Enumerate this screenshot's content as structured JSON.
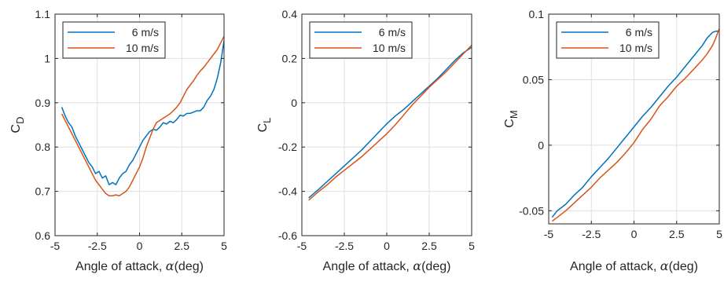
{
  "figure": {
    "series_colors": [
      "#0072BD",
      "#D95319"
    ]
  },
  "chart_data": [
    {
      "type": "line",
      "xlabel_prefix": "Angle of attack, ",
      "xlabel_symbol": "α",
      "xlabel_suffix": "(deg)",
      "ylabel_main": "C",
      "ylabel_sub": "D",
      "xlim": [
        -5,
        5
      ],
      "ylim": [
        0.6,
        1.1
      ],
      "xticks": [
        -5,
        -2.5,
        0,
        2.5,
        5
      ],
      "xtick_labels": [
        "-5",
        "-2.5",
        "0",
        "2.5",
        "5"
      ],
      "yticks": [
        0.6,
        0.7,
        0.8,
        0.9,
        1.0,
        1.1
      ],
      "ytick_labels": [
        "0.6",
        "0.7",
        "0.8",
        "0.9",
        "1",
        "1.1"
      ],
      "grid": true,
      "legend_position": "top-left",
      "series": [
        {
          "name": "6 m/s",
          "color": "#0072BD",
          "x": [
            -4.6,
            -4.4,
            -4.2,
            -4.0,
            -3.8,
            -3.6,
            -3.4,
            -3.2,
            -3.0,
            -2.8,
            -2.6,
            -2.4,
            -2.2,
            -2.0,
            -1.8,
            -1.6,
            -1.4,
            -1.2,
            -1.0,
            -0.8,
            -0.6,
            -0.4,
            -0.2,
            0.0,
            0.2,
            0.4,
            0.6,
            0.8,
            1.0,
            1.2,
            1.4,
            1.6,
            1.8,
            2.0,
            2.2,
            2.4,
            2.6,
            2.8,
            3.0,
            3.2,
            3.4,
            3.6,
            3.8,
            4.0,
            4.2,
            4.4,
            4.6,
            4.8,
            5.0
          ],
          "y": [
            0.89,
            0.87,
            0.855,
            0.845,
            0.825,
            0.81,
            0.795,
            0.78,
            0.765,
            0.755,
            0.74,
            0.745,
            0.73,
            0.735,
            0.715,
            0.72,
            0.715,
            0.73,
            0.74,
            0.745,
            0.76,
            0.77,
            0.785,
            0.8,
            0.815,
            0.825,
            0.835,
            0.84,
            0.838,
            0.845,
            0.855,
            0.852,
            0.858,
            0.855,
            0.862,
            0.872,
            0.87,
            0.876,
            0.876,
            0.879,
            0.882,
            0.882,
            0.89,
            0.905,
            0.915,
            0.93,
            0.955,
            0.99,
            1.04
          ]
        },
        {
          "name": "10 m/s",
          "color": "#D95319",
          "x": [
            -4.6,
            -4.4,
            -4.2,
            -4.0,
            -3.8,
            -3.6,
            -3.4,
            -3.2,
            -3.0,
            -2.8,
            -2.6,
            -2.4,
            -2.2,
            -2.0,
            -1.8,
            -1.6,
            -1.4,
            -1.2,
            -1.0,
            -0.8,
            -0.6,
            -0.4,
            -0.2,
            0.0,
            0.2,
            0.4,
            0.6,
            0.8,
            1.0,
            1.2,
            1.4,
            1.6,
            1.8,
            2.0,
            2.2,
            2.4,
            2.6,
            2.8,
            3.0,
            3.2,
            3.4,
            3.6,
            3.8,
            4.0,
            4.2,
            4.4,
            4.6,
            4.8,
            5.0
          ],
          "y": [
            0.875,
            0.86,
            0.845,
            0.83,
            0.815,
            0.8,
            0.785,
            0.77,
            0.755,
            0.74,
            0.725,
            0.715,
            0.705,
            0.695,
            0.69,
            0.69,
            0.692,
            0.69,
            0.695,
            0.7,
            0.71,
            0.725,
            0.74,
            0.755,
            0.775,
            0.8,
            0.82,
            0.84,
            0.855,
            0.86,
            0.865,
            0.87,
            0.875,
            0.882,
            0.89,
            0.9,
            0.915,
            0.93,
            0.94,
            0.95,
            0.962,
            0.972,
            0.98,
            0.99,
            1.0,
            1.01,
            1.02,
            1.035,
            1.05
          ]
        }
      ]
    },
    {
      "type": "line",
      "xlabel_prefix": "Angle of attack, ",
      "xlabel_symbol": "α",
      "xlabel_suffix": "(deg)",
      "ylabel_main": "C",
      "ylabel_sub": "L",
      "xlim": [
        -5,
        5
      ],
      "ylim": [
        -0.6,
        0.4
      ],
      "xticks": [
        -5,
        -2.5,
        0,
        2.5,
        5
      ],
      "xtick_labels": [
        "-5",
        "-2.5",
        "0",
        "2.5",
        "5"
      ],
      "yticks": [
        -0.6,
        -0.4,
        -0.2,
        0,
        0.2,
        0.4
      ],
      "ytick_labels": [
        "-0.6",
        "-0.4",
        "-0.2",
        "0",
        "0.2",
        "0.4"
      ],
      "grid": true,
      "legend_position": "top-left",
      "series": [
        {
          "name": "6 m/s",
          "color": "#0072BD",
          "x": [
            -4.6,
            -4.0,
            -3.5,
            -3.0,
            -2.5,
            -2.0,
            -1.5,
            -1.0,
            -0.5,
            0.0,
            0.5,
            1.0,
            1.5,
            2.0,
            2.5,
            3.0,
            3.5,
            4.0,
            4.5,
            5.0
          ],
          "y": [
            -0.43,
            -0.39,
            -0.355,
            -0.32,
            -0.285,
            -0.25,
            -0.215,
            -0.175,
            -0.135,
            -0.095,
            -0.06,
            -0.03,
            0.005,
            0.04,
            0.075,
            0.11,
            0.15,
            0.19,
            0.225,
            0.25
          ]
        },
        {
          "name": "10 m/s",
          "color": "#D95319",
          "x": [
            -4.6,
            -4.0,
            -3.5,
            -3.0,
            -2.5,
            -2.0,
            -1.5,
            -1.0,
            -0.5,
            0.0,
            0.5,
            1.0,
            1.5,
            2.0,
            2.5,
            3.0,
            3.5,
            4.0,
            4.5,
            5.0
          ],
          "y": [
            -0.44,
            -0.4,
            -0.37,
            -0.335,
            -0.305,
            -0.275,
            -0.245,
            -0.21,
            -0.175,
            -0.14,
            -0.1,
            -0.055,
            -0.01,
            0.03,
            0.07,
            0.105,
            0.14,
            0.18,
            0.22,
            0.26
          ]
        }
      ]
    },
    {
      "type": "line",
      "xlabel_prefix": "Angle of attack, ",
      "xlabel_symbol": "α",
      "xlabel_suffix": "(deg)",
      "ylabel_main": "C",
      "ylabel_sub": "M",
      "xlim": [
        -5,
        5
      ],
      "ylim": [
        -0.06,
        0.1
      ],
      "xticks": [
        -5,
        -2.5,
        0,
        2.5,
        5
      ],
      "xtick_labels": [
        "-5",
        "-2.5",
        "0",
        "2.5",
        "5"
      ],
      "yticks": [
        -0.05,
        0,
        0.05,
        0.1
      ],
      "ytick_labels": [
        "-0.05",
        "0",
        "0.05",
        "0.1"
      ],
      "grid": true,
      "legend_position": "top-left",
      "series": [
        {
          "name": "6 m/s",
          "color": "#0072BD",
          "x": [
            -4.8,
            -4.5,
            -4.0,
            -3.5,
            -3.0,
            -2.5,
            -2.0,
            -1.5,
            -1.0,
            -0.5,
            0.0,
            0.5,
            1.0,
            1.5,
            2.0,
            2.5,
            3.0,
            3.5,
            4.0,
            4.3,
            4.6,
            4.8,
            5.0
          ],
          "y": [
            -0.055,
            -0.05,
            -0.045,
            -0.038,
            -0.032,
            -0.024,
            -0.017,
            -0.01,
            -0.002,
            0.006,
            0.014,
            0.022,
            0.029,
            0.037,
            0.045,
            0.052,
            0.06,
            0.068,
            0.076,
            0.082,
            0.086,
            0.087,
            0.087
          ]
        },
        {
          "name": "10 m/s",
          "color": "#D95319",
          "x": [
            -4.8,
            -4.5,
            -4.0,
            -3.5,
            -3.0,
            -2.5,
            -2.0,
            -1.5,
            -1.0,
            -0.5,
            0.0,
            0.5,
            1.0,
            1.5,
            2.0,
            2.5,
            3.0,
            3.5,
            4.0,
            4.3,
            4.6,
            4.8,
            5.0
          ],
          "y": [
            -0.058,
            -0.055,
            -0.05,
            -0.044,
            -0.038,
            -0.032,
            -0.025,
            -0.019,
            -0.013,
            -0.006,
            0.002,
            0.012,
            0.02,
            0.03,
            0.037,
            0.045,
            0.051,
            0.058,
            0.065,
            0.07,
            0.076,
            0.082,
            0.089
          ]
        }
      ]
    }
  ]
}
